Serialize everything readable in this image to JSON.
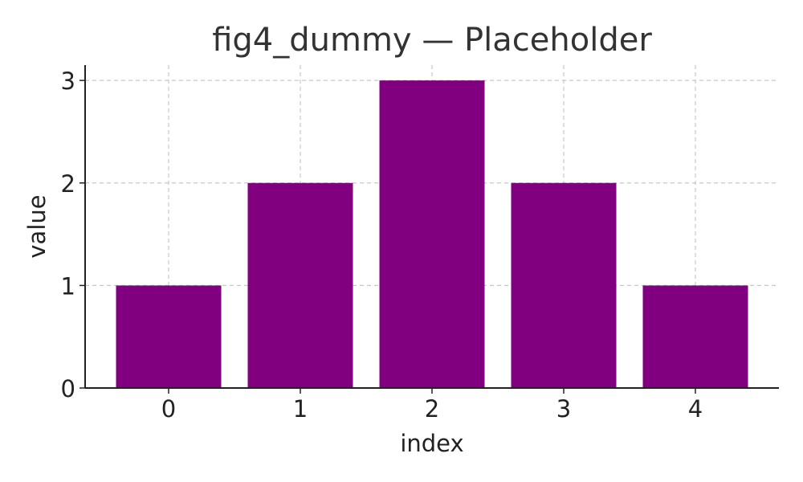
{
  "chart_data": {
    "type": "bar",
    "title": "fig4_dummy — Placeholder",
    "xlabel": "index",
    "ylabel": "value",
    "categories": [
      "0",
      "1",
      "2",
      "3",
      "4"
    ],
    "values": [
      1,
      2,
      3,
      2,
      1
    ],
    "yticks": [
      "0",
      "1",
      "2",
      "3"
    ],
    "ylim": [
      0,
      3.15
    ],
    "grid": true,
    "bar_color": "#800080"
  }
}
